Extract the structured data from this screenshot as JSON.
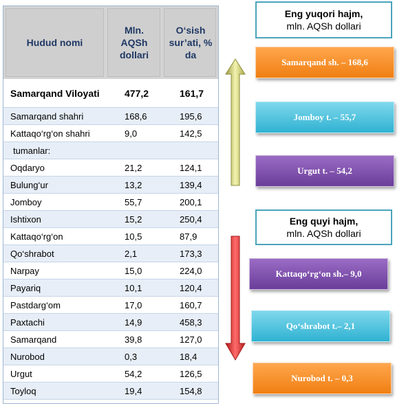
{
  "chart_data": {
    "type": "table",
    "headers": [
      "Hudud nomi",
      "Mln. AQSh dollari",
      "O‘sish sur’ati, % da"
    ],
    "rows": [
      {
        "name": "Samarqand Viloyati",
        "volume": "477,2",
        "growth": "161,7",
        "bold": true
      },
      {
        "name": "Samarqand  shahri",
        "volume": "168,6",
        "growth": "195,6"
      },
      {
        "name": "Kattaqo‘rg‘on  shahri",
        "volume": "9,0",
        "growth": "142,5"
      },
      {
        "name": "tumanlar:",
        "volume": "",
        "growth": "",
        "indent": true
      },
      {
        "name": "Oqdaryo",
        "volume": "21,2",
        "growth": "124,1"
      },
      {
        "name": "Bulung‘ur",
        "volume": "13,2",
        "growth": "139,4"
      },
      {
        "name": "Jomboy",
        "volume": "55,7",
        "growth": "200,1"
      },
      {
        "name": "Ishtixon",
        "volume": "15,2",
        "growth": "250,4"
      },
      {
        "name": "Kattaqo‘rg‘on",
        "volume": "10,5",
        "growth": "87,9"
      },
      {
        "name": "Qo‘shrabot",
        "volume": "2,1",
        "growth": "173,3"
      },
      {
        "name": "Narpay",
        "volume": "15,0",
        "growth": "224,0"
      },
      {
        "name": "Payariq",
        "volume": "10,1",
        "growth": "120,4"
      },
      {
        "name": "Pastdarg‘om",
        "volume": "17,0",
        "growth": "160,7"
      },
      {
        "name": "Paxtachi",
        "volume": "14,9",
        "growth": "458,3"
      },
      {
        "name": "Samarqand",
        "volume": "39,8",
        "growth": "127,0"
      },
      {
        "name": "Nurobod",
        "volume": "0,3",
        "growth": "18,4"
      },
      {
        "name": "Urgut",
        "volume": "54,2",
        "growth": "126,5"
      },
      {
        "name": "Toyloq",
        "volume": "19,4",
        "growth": "154,8"
      }
    ]
  },
  "top_panel": {
    "title": "Eng yuqori hajm,",
    "subtitle": "mln. AQSh dollari",
    "items": [
      "Samarqand sh. – 168,6",
      "Jomboy t. –  55,7",
      "Urgut t. –  54,2"
    ]
  },
  "bottom_panel": {
    "title": "Eng quyi hajm,",
    "subtitle": "mln. AQSh dollari",
    "items": [
      "Kattaqo‘rg‘on sh.– 9,0",
      "Qo‘shrabot  t.– 2,1",
      "Nurobod  t. – 0,3"
    ]
  },
  "colors": {
    "up_arrow": "#c8c870",
    "down_arrow": "#e03030",
    "orange": "#f07f12",
    "cyan": "#2fb2d2",
    "purple": "#6a3d9a"
  }
}
